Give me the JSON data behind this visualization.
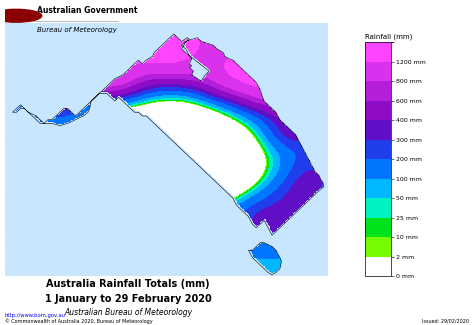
{
  "title_line1": "Australia Rainfall Totals (mm)",
  "title_line2": "1 January to 29 February 2020",
  "title_line3": "Australian Bureau of Meteorology",
  "header_line1": "Australian Government",
  "header_line2": "Bureau of Meteorology",
  "colorbar_title": "Rainfall (mm)",
  "colorbar_levels": [
    0,
    2,
    10,
    25,
    50,
    100,
    200,
    300,
    400,
    600,
    800,
    1200
  ],
  "colorbar_labels": [
    "0 mm",
    "2 mm",
    "10 mm",
    "25 mm",
    "50 mm",
    "100 mm",
    "200 mm",
    "300 mm",
    "400 mm",
    "600 mm",
    "800 mm",
    "1200 mm"
  ],
  "colorbar_colors": [
    "#FFFFFF",
    "#F5C8A0",
    "#E87020",
    "#FF9000",
    "#FFFF00",
    "#80FF00",
    "#00DD00",
    "#00FFAA",
    "#00CCFF",
    "#0055FF",
    "#7700BB",
    "#FF44FF"
  ],
  "footer_left": "http://www.bom.gov.au",
  "footer_copyright": "© Commonwealth of Australia 2020, Bureau of Meteorology",
  "footer_right": "Issued: 29/02/2020",
  "bg_color": "#FFFFFF",
  "map_bg": "#C8E8FF"
}
